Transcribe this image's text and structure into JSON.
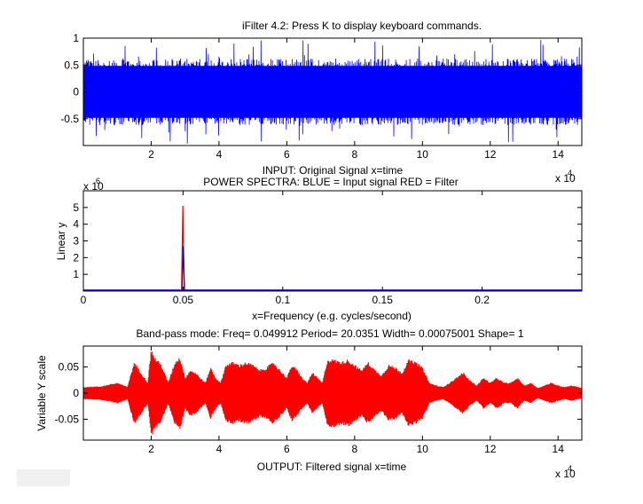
{
  "window": {
    "title": "iFilter 4.2:        Press K to display keyboard commands."
  },
  "chart_data": [
    {
      "type": "line",
      "title": "iFilter 4.2:        Press K to display keyboard commands.",
      "xlabel": "INPUT: Original Signal    x=time",
      "ylabel": "",
      "x_exponent": "x 10",
      "x_exponent_power": "4",
      "xlim": [
        0,
        147000
      ],
      "ylim": [
        -1,
        1
      ],
      "xticks": [
        20000,
        40000,
        60000,
        80000,
        100000,
        120000,
        140000
      ],
      "xtick_labels": [
        "2",
        "4",
        "6",
        "8",
        "10",
        "12",
        "14"
      ],
      "yticks": [
        1,
        0.5,
        0,
        -0.5
      ],
      "ytick_labels": [
        "1",
        "0.5",
        "0",
        "-0.5"
      ],
      "series": [
        {
          "color": "#0000ff",
          "envelope_peak": 0.62,
          "spike_peak": 0.98,
          "description_kind": "noise"
        }
      ]
    },
    {
      "type": "line",
      "title": "POWER SPECTRA:  BLUE = Input signal    RED = Filter",
      "xlabel": "x=Frequency (e.g. cycles/second)",
      "ylabel": "Linear y",
      "y_exponent": "x 10",
      "y_exponent_power": "6",
      "xlim": [
        0,
        0.25
      ],
      "ylim": [
        0,
        6
      ],
      "xticks": [
        0,
        0.05,
        0.1,
        0.15,
        0.2
      ],
      "xtick_labels": [
        "0",
        "0.05",
        "0.1",
        "0.15",
        "0.2"
      ],
      "yticks": [
        1,
        2,
        3,
        4,
        5
      ],
      "ytick_labels": [
        "1",
        "2",
        "3",
        "4",
        "5"
      ],
      "series": [
        {
          "name": "Filter",
          "color": "#ff0000",
          "peak_x": 0.0499,
          "peak_y": 5.1
        },
        {
          "name": "Input signal",
          "color": "#0000ff",
          "peak_x": 0.0501,
          "peak_y": 2.7
        }
      ]
    },
    {
      "type": "line",
      "title": "Band-pass mode:   Freq= 0.049912    Period= 20.0351    Width= 0.00075001      Shape=  1",
      "xlabel": "OUTPUT: Filtered signal    x=time",
      "ylabel": "Variable Y scale",
      "x_exponent": "x 10",
      "x_exponent_power": "4",
      "xlim": [
        0,
        147000
      ],
      "ylim": [
        -0.09,
        0.09
      ],
      "xticks": [
        20000,
        40000,
        60000,
        80000,
        100000,
        120000,
        140000
      ],
      "xtick_labels": [
        "2",
        "4",
        "6",
        "8",
        "10",
        "12",
        "14"
      ],
      "yticks": [
        0.05,
        0,
        -0.05
      ],
      "ytick_labels": [
        "0.05",
        "0",
        "-0.05"
      ],
      "series": [
        {
          "color": "#ff0000",
          "envelope_x": [
            0,
            5000,
            10000,
            13000,
            15000,
            17000,
            19000,
            20000,
            21000,
            23000,
            25000,
            27000,
            28500,
            30000,
            31500,
            33000,
            34500,
            36000,
            37500,
            39000,
            40500,
            42000,
            44000,
            46000,
            48000,
            50000,
            52000,
            54000,
            56000,
            58000,
            60000,
            61500,
            63000,
            64500,
            66000,
            67500,
            69000,
            70500,
            72000,
            74000,
            76000,
            78000,
            80000,
            82000,
            84000,
            86000,
            88000,
            90000,
            92000,
            94000,
            96000,
            98000,
            100000,
            102000,
            104000,
            106000,
            108000,
            110000,
            112000,
            114000,
            116000,
            118000,
            120000,
            122000,
            124000,
            126000,
            128000,
            130000,
            132000,
            134000,
            136000,
            138000,
            140000,
            142000,
            144000,
            146000,
            147000
          ],
          "envelope_y": [
            0.012,
            0.013,
            0.02,
            0.012,
            0.06,
            0.04,
            0.02,
            0.085,
            0.07,
            0.055,
            0.02,
            0.06,
            0.07,
            0.03,
            0.045,
            0.04,
            0.03,
            0.02,
            0.05,
            0.03,
            0.02,
            0.055,
            0.06,
            0.055,
            0.06,
            0.055,
            0.045,
            0.05,
            0.06,
            0.045,
            0.03,
            0.055,
            0.045,
            0.03,
            0.02,
            0.04,
            0.03,
            0.02,
            0.065,
            0.065,
            0.06,
            0.065,
            0.055,
            0.045,
            0.06,
            0.045,
            0.035,
            0.055,
            0.05,
            0.04,
            0.065,
            0.06,
            0.05,
            0.02,
            0.015,
            0.012,
            0.02,
            0.03,
            0.04,
            0.025,
            0.015,
            0.03,
            0.02,
            0.03,
            0.02,
            0.02,
            0.03,
            0.015,
            0.02,
            0.01,
            0.015,
            0.02,
            0.015,
            0.012,
            0.015,
            0.012,
            0.01
          ]
        }
      ]
    }
  ]
}
